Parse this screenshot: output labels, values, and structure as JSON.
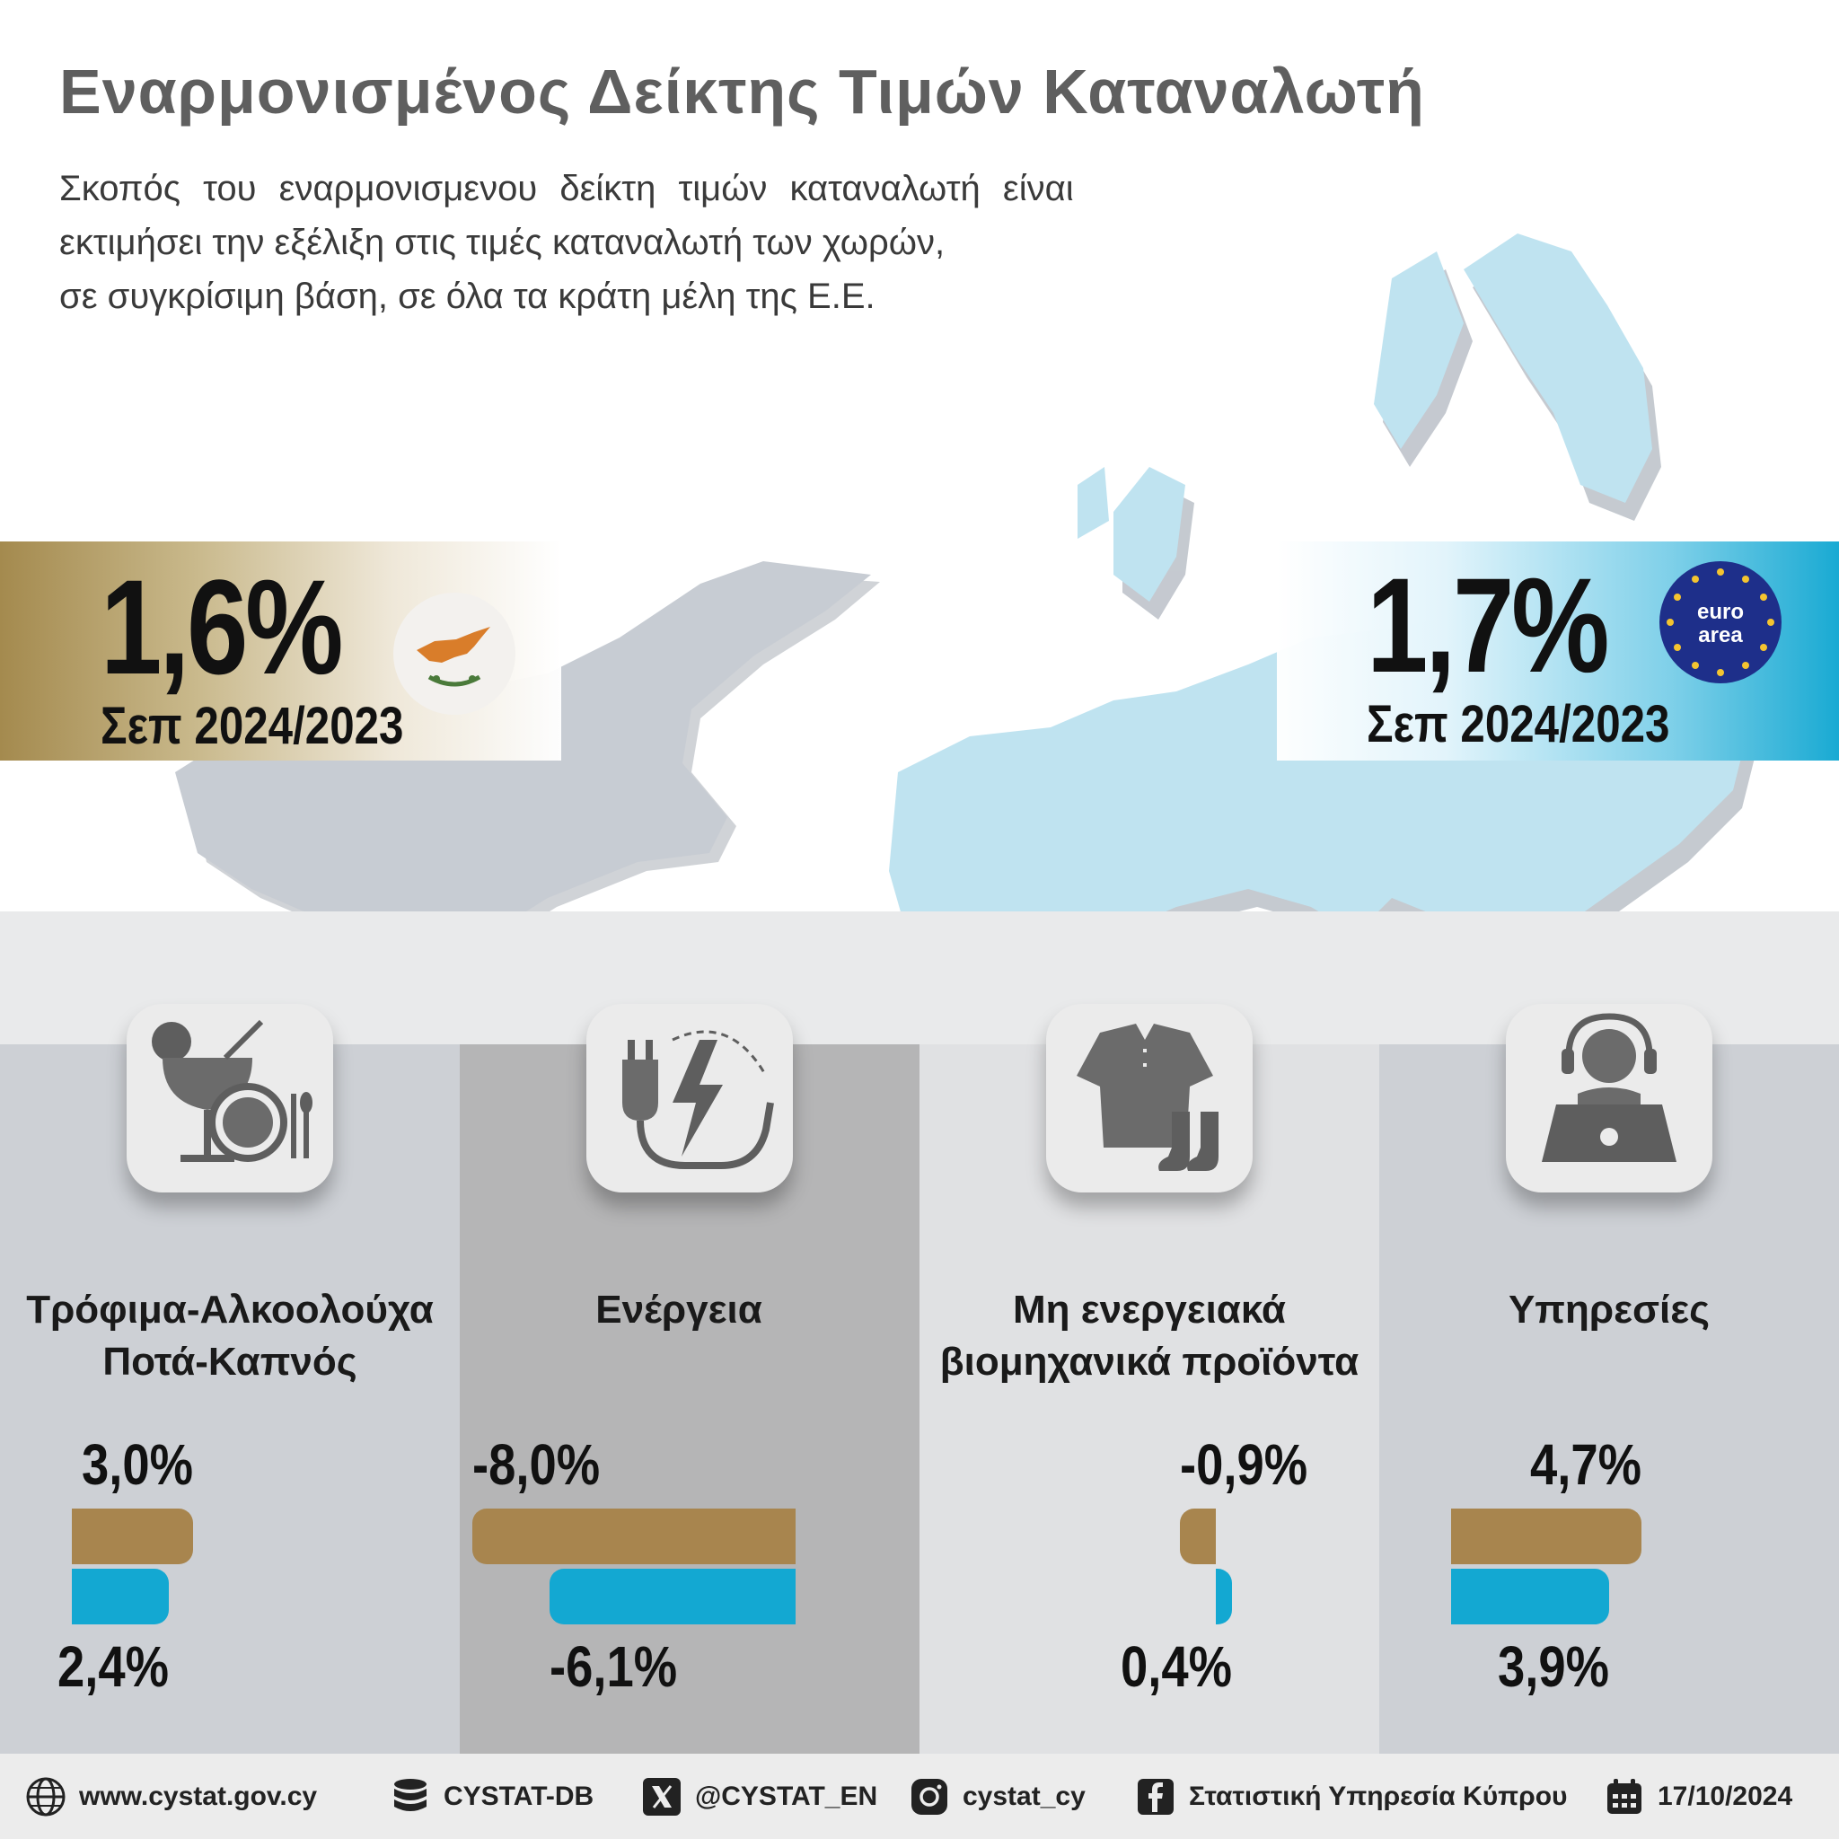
{
  "header": {
    "title": "Εναρμονισμένος Δείκτης Τιμών Καταναλωτή",
    "intro_lines": [
      "Σκοπός του εναρμονισμενου δείκτη τιμών καταναλωτή είναι",
      "εκτιμήσει την εξέλιξη στις τιμές καταναλωτή των χωρών,",
      "σε συγκρίσιμη βάση, σε όλα τα κράτη μέλη της Ε.Ε."
    ]
  },
  "kpis": {
    "cyprus": {
      "value": "1,6%",
      "period": "Σεπ 2024/2023"
    },
    "euro_area": {
      "value": "1,7%",
      "period": "Σεπ 2024/2023",
      "badge_line1": "euro",
      "badge_line2": "area"
    }
  },
  "colors": {
    "cyprus": "#a8854e",
    "euro_area": "#13a8d2"
  },
  "chart_data": {
    "type": "bar",
    "categories": [
      "Τρόφιμα-Αλκοολούχα Ποτά-Καπνός",
      "Ενέργεια",
      "Μη ενεργειακά βιομηχανικά προϊόντα",
      "Υπηρεσίες"
    ],
    "category_lines": [
      [
        "Τρόφιμα-Αλκοολούχα",
        "Ποτά-Καπνός"
      ],
      [
        "Ενέργεια"
      ],
      [
        "Μη ενεργειακά",
        "βιομηχανικά προϊόντα"
      ],
      [
        "Υπηρεσίες"
      ]
    ],
    "series": [
      {
        "values": [
          3.0,
          -8.0,
          -0.9,
          4.7
        ],
        "labels": [
          "3,0%",
          "-8,0%",
          "-0,9%",
          "4,7%"
        ],
        "color": "#a8854e"
      },
      {
        "values": [
          2.4,
          -6.1,
          0.4,
          3.9
        ],
        "labels": [
          "2,4%",
          "-6,1%",
          "0,4%",
          "3,9%"
        ],
        "color": "#13a8d2"
      }
    ],
    "icons": [
      "food-drink-icon",
      "energy-plug-icon",
      "clothing-icon",
      "services-headset-icon"
    ]
  },
  "footer": {
    "items": [
      {
        "icon": "globe-icon",
        "text": "www.cystat.gov.cy"
      },
      {
        "icon": "database-icon",
        "text": "CYSTAT-DB"
      },
      {
        "icon": "x-icon",
        "text": "@CYSTAT_EN"
      },
      {
        "icon": "instagram-icon",
        "text": "cystat_cy"
      },
      {
        "icon": "facebook-icon",
        "text": "Στατιστική Υπηρεσία Κύπρου"
      },
      {
        "icon": "calendar-icon",
        "text": "17/10/2024"
      }
    ]
  }
}
